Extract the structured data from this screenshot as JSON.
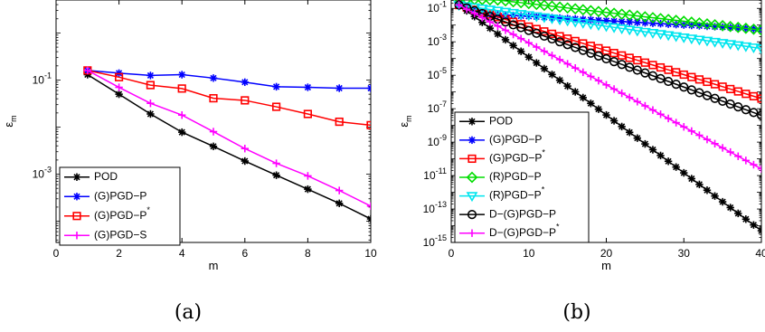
{
  "chart_data": [
    {
      "type": "line",
      "panel_label": "(a)",
      "xlabel": "m",
      "ylabel": "ε_m",
      "ylabel_main": "ε",
      "ylabel_sub": "m",
      "yscale": "log",
      "xlim": [
        0,
        10
      ],
      "ylim_exp": [
        -4.45,
        0.7
      ],
      "xticks": [
        0,
        2,
        4,
        6,
        8,
        10
      ],
      "xtick_labels": [
        "0",
        "2",
        "4",
        "6",
        "8",
        "10"
      ],
      "yticks_exp": [
        -3,
        -1
      ],
      "ytick_labels": [
        {
          "base": "10",
          "exp": "-3"
        },
        {
          "base": "10",
          "exp": "-1"
        }
      ],
      "legend_position": "bottom-left",
      "x": [
        1,
        2,
        3,
        4,
        5,
        6,
        7,
        8,
        9,
        10
      ],
      "series": [
        {
          "name": "POD",
          "sup": "",
          "color": "#000000",
          "marker": "star",
          "values": [
            0.13,
            0.05,
            0.019,
            0.0078,
            0.0039,
            0.0019,
            0.00095,
            0.00048,
            0.00024,
            0.000112
          ]
        },
        {
          "name": "(G)PGD−P",
          "sup": "",
          "color": "#0000ff",
          "marker": "star",
          "values": [
            0.16,
            0.14,
            0.125,
            0.13,
            0.11,
            0.09,
            0.072,
            0.07,
            0.067,
            0.067
          ]
        },
        {
          "name": "(G)PGD−P",
          "sup": "*",
          "color": "#ff0000",
          "marker": "square",
          "values": [
            0.16,
            0.115,
            0.078,
            0.066,
            0.041,
            0.037,
            0.027,
            0.019,
            0.013,
            0.011
          ]
        },
        {
          "name": "(G)PGD−S",
          "sup": "",
          "color": "#ff00ff",
          "marker": "plus",
          "values": [
            0.16,
            0.07,
            0.032,
            0.018,
            0.008,
            0.0035,
            0.0017,
            0.00092,
            0.00045,
            0.00021
          ]
        }
      ]
    },
    {
      "type": "line",
      "panel_label": "(b)",
      "xlabel": "m",
      "ylabel": "ε_m",
      "ylabel_main": "ε",
      "ylabel_sub": "m",
      "yscale": "log",
      "xlim": [
        0,
        40
      ],
      "ylim_exp": [
        -15,
        -0.5
      ],
      "xticks": [
        0,
        10,
        20,
        30,
        40
      ],
      "xtick_labels": [
        "0",
        "10",
        "20",
        "30",
        "40"
      ],
      "yticks_exp": [
        -15,
        -13,
        -11,
        -9,
        -7,
        -5,
        -3,
        -1
      ],
      "ytick_labels": [
        {
          "base": "10",
          "exp": "-15"
        },
        {
          "base": "10",
          "exp": "-13"
        },
        {
          "base": "10",
          "exp": "-11"
        },
        {
          "base": "10",
          "exp": "-9"
        },
        {
          "base": "10",
          "exp": "-7"
        },
        {
          "base": "10",
          "exp": "-5"
        },
        {
          "base": "10",
          "exp": "-3"
        },
        {
          "base": "10",
          "exp": "-1"
        }
      ],
      "legend_position": "bottom-left",
      "x_start": 1,
      "series": [
        {
          "name": "POD",
          "sup": "",
          "color": "#000000",
          "marker": "star",
          "from": 1,
          "to": 40,
          "logv_points": [
            [
              1,
              -0.8
            ],
            [
              40,
              -14.3
            ]
          ]
        },
        {
          "name": "(G)PGD−P",
          "sup": "",
          "color": "#0000ff",
          "marker": "star",
          "from": 1,
          "to": 40,
          "logv_points": [
            [
              1,
              -0.8
            ],
            [
              5,
              -1.35
            ],
            [
              40,
              -2.25
            ]
          ]
        },
        {
          "name": "(G)PGD−P",
          "sup": "*",
          "color": "#ff0000",
          "marker": "square",
          "from": 1,
          "to": 40,
          "logv_points": [
            [
              1,
              -0.8
            ],
            [
              40,
              -6.4
            ]
          ]
        },
        {
          "name": "(R)PGD−P",
          "sup": "",
          "color": "#00dd00",
          "marker": "diamond",
          "from": 1,
          "to": 40,
          "logv_points": [
            [
              1,
              -0.45
            ],
            [
              6,
              -0.5
            ],
            [
              40,
              -2.3
            ]
          ]
        },
        {
          "name": "(R)PGD−P",
          "sup": "*",
          "color": "#00e5ee",
          "marker": "triangle-down",
          "from": 1,
          "to": 40,
          "logv_points": [
            [
              1,
              -0.8
            ],
            [
              40,
              -3.4
            ]
          ]
        },
        {
          "name": "D−(G)PGD−P",
          "sup": "",
          "color": "#000000",
          "marker": "circle",
          "from": 1,
          "to": 40,
          "logv_points": [
            [
              1,
              -0.8
            ],
            [
              40,
              -7.4
            ]
          ]
        },
        {
          "name": "D−(G)PGD−P",
          "sup": "*",
          "color": "#ff00ff",
          "marker": "plus",
          "from": 1,
          "to": 40,
          "logv_points": [
            [
              1,
              -0.8
            ],
            [
              40,
              -10.6
            ]
          ]
        }
      ]
    }
  ]
}
